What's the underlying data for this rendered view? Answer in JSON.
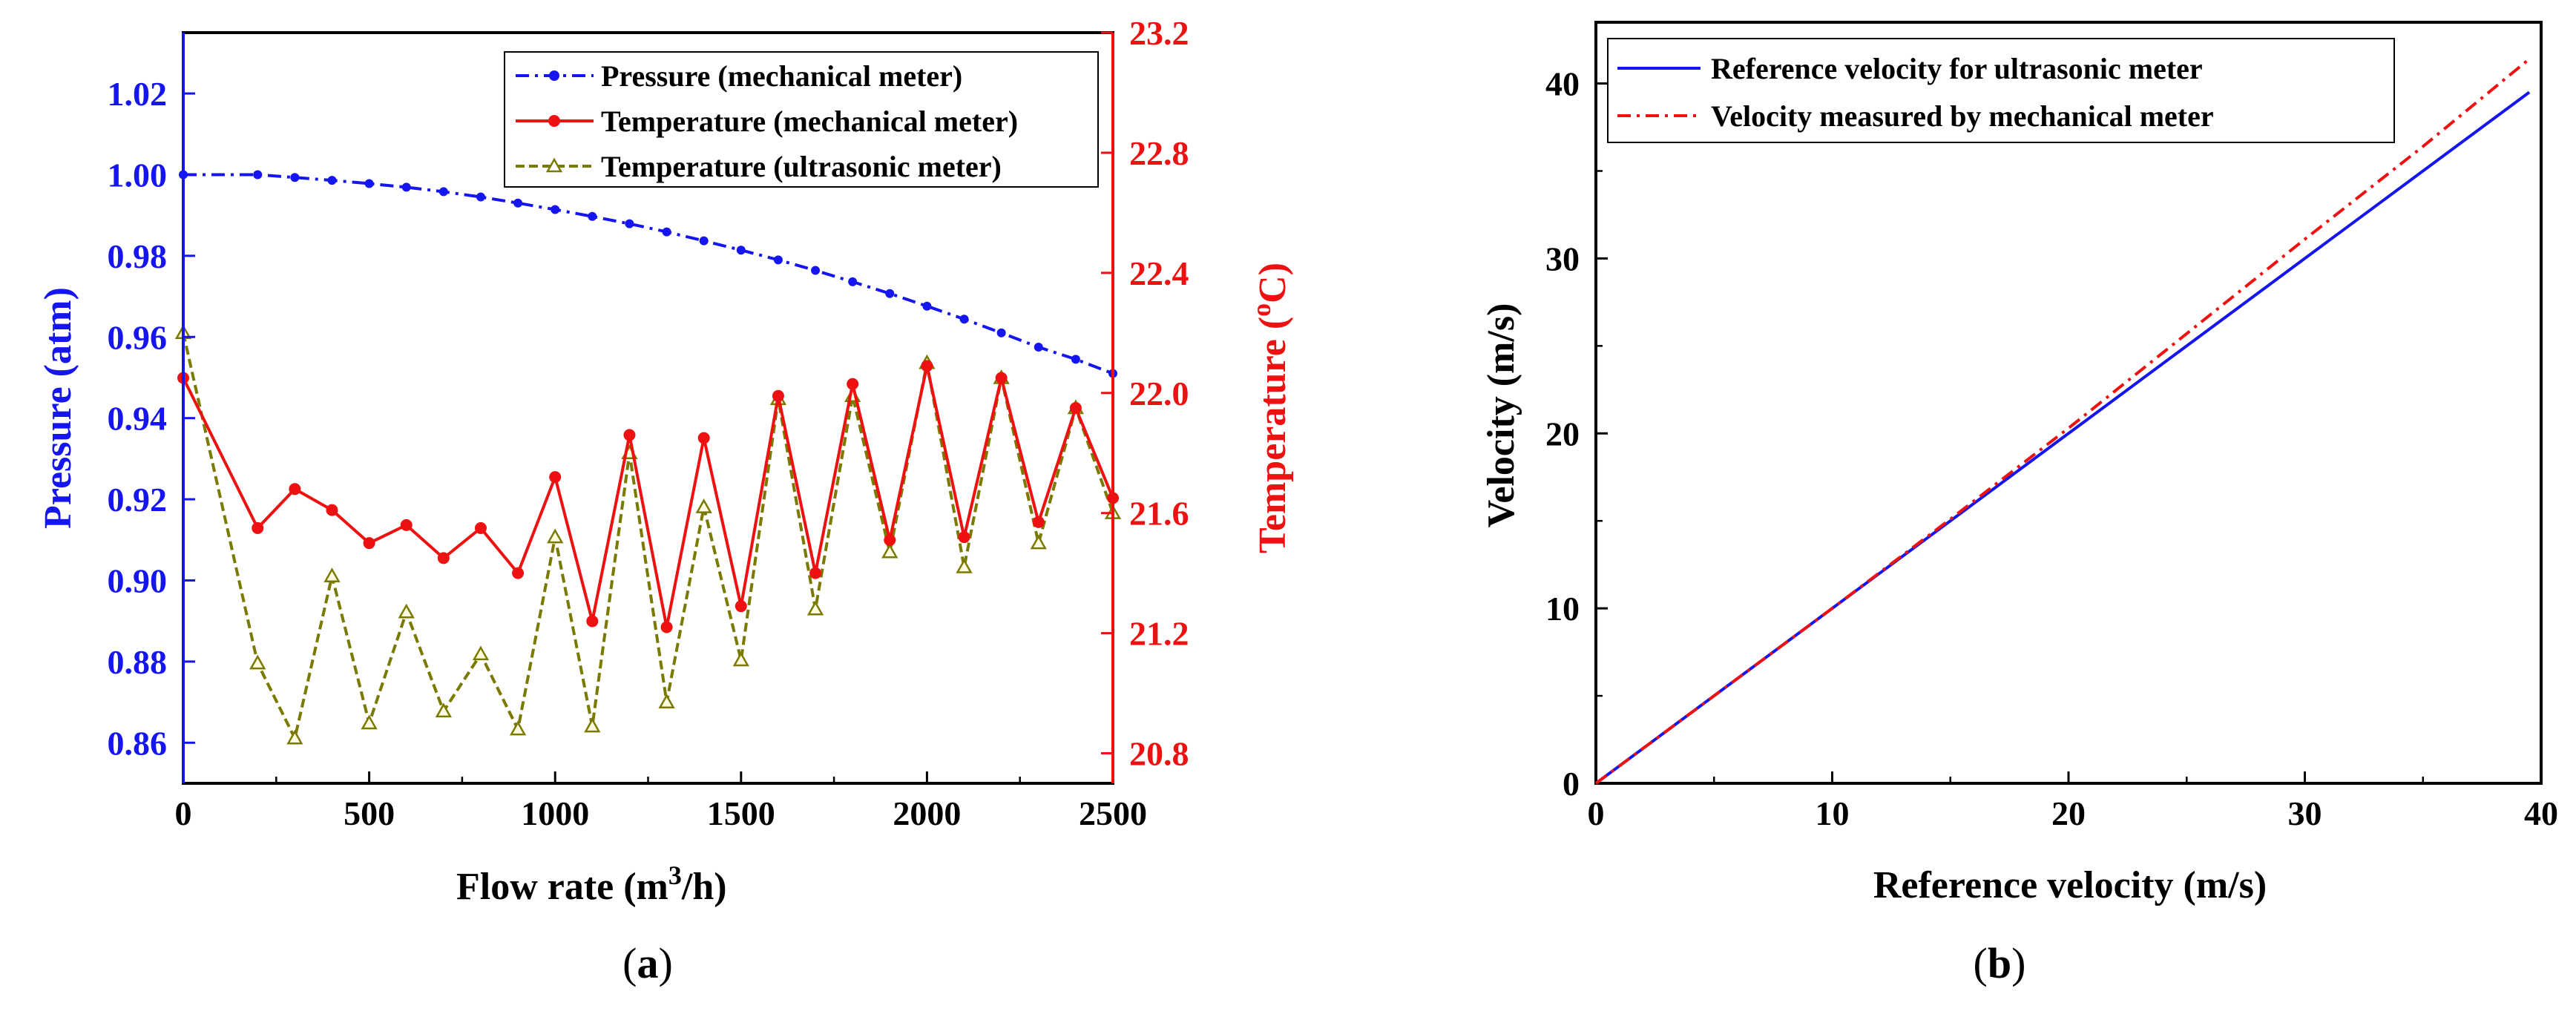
{
  "chart_data": [
    {
      "panel": "a",
      "type": "line",
      "panel_label_letter": "a",
      "x": [
        0,
        200,
        300,
        400,
        500,
        600,
        700,
        800,
        900,
        1000,
        1100,
        1200,
        1300,
        1400,
        1500,
        1600,
        1700,
        1800,
        1900,
        2000,
        2100,
        2200,
        2300,
        2400,
        2500
      ],
      "xlabel": "Flow rate (m",
      "xlabel_sup": "3",
      "xlabel_tail": "/h)",
      "xlim": [
        0,
        2500
      ],
      "xticks": [
        "0",
        "500",
        "1000",
        "1500",
        "2000",
        "2500"
      ],
      "ylabel_left": "Pressure (atm)",
      "ylim_left": [
        0.85,
        1.035
      ],
      "yticks_left": [
        "0.86",
        "0.88",
        "0.90",
        "0.92",
        "0.94",
        "0.96",
        "0.98",
        "1.00",
        "1.02"
      ],
      "ylabel_right": "Temperature (",
      "ylabel_right_sup": "o",
      "ylabel_right_tail": "C)",
      "ylim_right": [
        20.7,
        23.2
      ],
      "yticks_right": [
        "20.8",
        "21.2",
        "21.6",
        "22.0",
        "22.4",
        "22.8",
        "23.2"
      ],
      "legend_position": "top-right",
      "colors": {
        "pressure": "#1515f0",
        "mech_temp": "#ee1111",
        "ultra_temp": "#7a7a00",
        "axis": "#000000"
      },
      "series": [
        {
          "name": "Pressure (mechanical meter)",
          "axis": "left",
          "style": "dash-dot",
          "marker": "circle",
          "x": [
            0,
            200,
            300,
            400,
            500,
            600,
            700,
            800,
            900,
            1000,
            1100,
            1200,
            1300,
            1400,
            1500,
            1600,
            1700,
            1800,
            1900,
            2000,
            2100,
            2200,
            2300,
            2400,
            2500
          ],
          "values": [
            1.0,
            1.0,
            0.9993,
            0.9986,
            0.9978,
            0.9969,
            0.9958,
            0.9945,
            0.993,
            0.9914,
            0.9897,
            0.9879,
            0.9859,
            0.9837,
            0.9814,
            0.979,
            0.9764,
            0.9736,
            0.9707,
            0.9676,
            0.9644,
            0.961,
            0.9575,
            0.9545,
            0.951
          ]
        },
        {
          "name": "Temperature (mechanical meter)",
          "axis": "right",
          "style": "solid",
          "marker": "circle",
          "x": [
            0,
            200,
            300,
            400,
            500,
            600,
            700,
            800,
            900,
            1000,
            1100,
            1200,
            1300,
            1400,
            1500,
            1600,
            1700,
            1800,
            1900,
            2000,
            2100,
            2200,
            2300,
            2400,
            2500
          ],
          "values": [
            22.05,
            21.55,
            21.68,
            21.61,
            21.5,
            21.56,
            21.45,
            21.55,
            21.4,
            21.72,
            21.24,
            21.86,
            21.22,
            21.85,
            21.29,
            21.99,
            21.4,
            22.03,
            21.51,
            22.09,
            21.52,
            22.05,
            21.57,
            21.95,
            21.65
          ]
        },
        {
          "name": "Temperature (ultrasonic meter)",
          "axis": "right",
          "style": "dashed",
          "marker": "triangle",
          "x": [
            0,
            200,
            300,
            400,
            500,
            600,
            700,
            800,
            900,
            1000,
            1100,
            1200,
            1300,
            1400,
            1500,
            1600,
            1700,
            1800,
            1900,
            2000,
            2100,
            2200,
            2300,
            2400,
            2500
          ],
          "values": [
            22.2,
            21.1,
            20.85,
            21.39,
            20.9,
            21.27,
            20.94,
            21.13,
            20.88,
            21.52,
            20.89,
            21.8,
            20.97,
            21.62,
            21.11,
            21.98,
            21.28,
            21.99,
            21.47,
            22.1,
            21.42,
            22.05,
            21.5,
            21.95,
            21.6
          ]
        }
      ]
    },
    {
      "panel": "b",
      "type": "line",
      "panel_label_letter": "b",
      "xlabel": "Reference velocity (m/s)",
      "ylabel": "Velocity (m/s)",
      "xlim": [
        0,
        40
      ],
      "ylim": [
        0,
        43.5
      ],
      "xticks": [
        "0",
        "10",
        "20",
        "30",
        "40"
      ],
      "yticks": [
        "0",
        "10",
        "20",
        "30",
        "40"
      ],
      "legend_position": "top-left",
      "colors": {
        "reference": "#1515f0",
        "mechanical": "#ee1111",
        "axis": "#000000"
      },
      "series": [
        {
          "name": "Reference velocity for ultrasonic meter",
          "style": "solid",
          "x": [
            0,
            10,
            20,
            30,
            39.5
          ],
          "values": [
            0,
            10,
            20,
            30,
            39.5
          ]
        },
        {
          "name": "Velocity measured by mechanical meter",
          "style": "dash-dot",
          "x": [
            0,
            10,
            15,
            20,
            25,
            30,
            35,
            39.5
          ],
          "values": [
            0,
            10,
            15.1,
            20.3,
            25.7,
            31.1,
            36.4,
            41.4
          ]
        }
      ]
    }
  ]
}
